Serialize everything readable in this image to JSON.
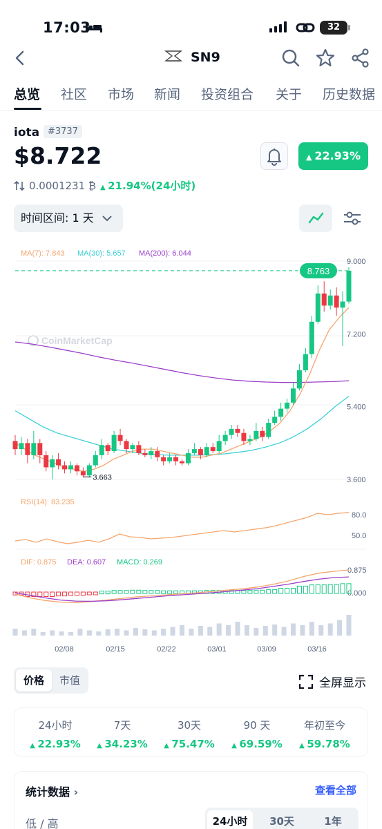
{
  "status_bar": {
    "time": "17:03",
    "battery": "32"
  },
  "header": {
    "coin_name": "SN9"
  },
  "tabs": [
    {
      "label": "总览"
    },
    {
      "label": "社区"
    },
    {
      "label": "市场"
    },
    {
      "label": "新闻"
    },
    {
      "label": "投资组合"
    },
    {
      "label": "关于"
    },
    {
      "label": "历史数据"
    }
  ],
  "coin": {
    "symbol": "iota",
    "rank": "#3737",
    "price": "$8.722",
    "change_24h": "22.93%",
    "btc_price": "0.0001231 ₿",
    "btc_change": "21.94%(24小时)"
  },
  "controls": {
    "range_label": "时间区间: 1 天"
  },
  "chart_data": {
    "type": "candlestick",
    "watermark": "CoinMarketCap",
    "current_price_label": "8.763",
    "low_label": "3.663",
    "y_ticks": [
      "9.000",
      "7.200",
      "5.400",
      "3.600"
    ],
    "x_ticks": [
      "02/08",
      "02/15",
      "02/22",
      "03/01",
      "03/09",
      "03/16"
    ],
    "ma_legend": {
      "ma7": "MA(7): 7.843",
      "ma30": "MA(30): 5.657",
      "ma200": "MA(200): 6.044"
    },
    "rsi_legend": "RSI(14): 83.235",
    "rsi_ticks": [
      "80.0",
      "50.0"
    ],
    "macd_legend": {
      "dif": "DIF: 0.875",
      "dea": "DEA: 0.607",
      "macd": "MACD: 0.269"
    },
    "macd_ticks": [
      "0.875",
      "0.000"
    ],
    "ylim": [
      3.6,
      9.0
    ],
    "candles": [
      [
        4.55,
        4.35,
        4.7,
        4.2
      ],
      [
        4.35,
        4.5,
        4.65,
        4.2
      ],
      [
        4.5,
        4.2,
        4.6,
        4.0
      ],
      [
        4.2,
        4.5,
        4.8,
        4.1
      ],
      [
        4.5,
        4.2,
        4.6,
        4.0
      ],
      [
        4.2,
        3.9,
        4.3,
        3.8
      ],
      [
        3.9,
        4.1,
        4.2,
        3.6
      ],
      [
        4.1,
        3.95,
        4.25,
        3.85
      ],
      [
        3.95,
        3.85,
        4.05,
        3.75
      ],
      [
        3.85,
        3.95,
        4.05,
        3.75
      ],
      [
        3.95,
        3.8,
        4.0,
        3.7
      ],
      [
        3.8,
        3.7,
        3.9,
        3.65
      ],
      [
        3.7,
        3.95,
        4.0,
        3.65
      ],
      [
        3.95,
        4.2,
        4.3,
        3.9
      ],
      [
        4.2,
        4.45,
        4.6,
        4.1
      ],
      [
        4.45,
        4.3,
        4.5,
        4.2
      ],
      [
        4.3,
        4.7,
        4.8,
        4.25
      ],
      [
        4.7,
        4.55,
        4.85,
        4.45
      ],
      [
        4.55,
        4.35,
        4.6,
        4.25
      ],
      [
        4.35,
        4.45,
        4.5,
        4.25
      ],
      [
        4.45,
        4.25,
        4.55,
        4.2
      ],
      [
        4.25,
        4.2,
        4.35,
        4.15
      ],
      [
        4.2,
        4.3,
        4.4,
        4.1
      ],
      [
        4.3,
        4.15,
        4.4,
        4.05
      ],
      [
        4.15,
        4.05,
        4.2,
        3.95
      ],
      [
        4.05,
        4.15,
        4.25,
        4.0
      ],
      [
        4.15,
        4.05,
        4.2,
        3.95
      ],
      [
        4.05,
        4.0,
        4.1,
        3.95
      ],
      [
        4.0,
        4.25,
        4.35,
        3.95
      ],
      [
        4.25,
        4.35,
        4.5,
        4.2
      ],
      [
        4.35,
        4.2,
        4.4,
        4.1
      ],
      [
        4.2,
        4.4,
        4.5,
        4.15
      ],
      [
        4.4,
        4.3,
        4.5,
        4.25
      ],
      [
        4.3,
        4.55,
        4.7,
        4.25
      ],
      [
        4.55,
        4.7,
        4.8,
        4.45
      ],
      [
        4.7,
        4.85,
        4.95,
        4.6
      ],
      [
        4.85,
        4.75,
        4.95,
        4.65
      ],
      [
        4.75,
        4.55,
        4.85,
        4.45
      ],
      [
        4.55,
        4.6,
        4.7,
        4.45
      ],
      [
        4.6,
        4.8,
        5.0,
        4.55
      ],
      [
        4.8,
        4.65,
        4.9,
        4.55
      ],
      [
        4.65,
        5.0,
        5.1,
        4.6
      ],
      [
        5.0,
        5.15,
        5.3,
        4.95
      ],
      [
        5.15,
        5.35,
        5.5,
        5.05
      ],
      [
        5.35,
        5.5,
        5.6,
        5.25
      ],
      [
        5.5,
        5.85,
        6.0,
        5.45
      ],
      [
        5.85,
        6.3,
        6.45,
        5.8
      ],
      [
        6.3,
        6.7,
        6.85,
        6.25
      ],
      [
        6.7,
        7.5,
        7.65,
        6.6
      ],
      [
        7.5,
        8.2,
        8.4,
        7.45
      ],
      [
        8.2,
        7.9,
        8.5,
        7.75
      ],
      [
        7.9,
        8.15,
        8.3,
        7.8
      ],
      [
        8.15,
        7.85,
        8.35,
        7.65
      ],
      [
        7.85,
        8.0,
        8.25,
        6.9
      ],
      [
        8.0,
        8.763,
        8.85,
        7.95
      ]
    ],
    "ma7": [
      4.5,
      4.35,
      4.2,
      4.1,
      4.0,
      3.9,
      3.85,
      3.8,
      3.85,
      3.95,
      4.1,
      4.2,
      4.3,
      4.35,
      4.35,
      4.3,
      4.25,
      4.2,
      4.15,
      4.15,
      4.2,
      4.25,
      4.35,
      4.45,
      4.55,
      4.65,
      4.8,
      5.0,
      5.3,
      5.7,
      6.2,
      6.8,
      7.3,
      7.6,
      7.85
    ],
    "ma30": [
      5.3,
      5.1,
      4.9,
      4.75,
      4.65,
      4.55,
      4.45,
      4.35,
      4.3,
      4.25,
      4.22,
      4.2,
      4.2,
      4.2,
      4.21,
      4.23,
      4.27,
      4.32,
      4.4,
      4.5,
      4.65,
      4.85,
      5.1,
      5.4,
      5.66
    ],
    "ma200": [
      7.0,
      6.95,
      6.88,
      6.8,
      6.72,
      6.63,
      6.55,
      6.48,
      6.4,
      6.32,
      6.24,
      6.17,
      6.11,
      6.06,
      6.03,
      6.01,
      6.0,
      6.0,
      6.01,
      6.02,
      6.04
    ],
    "rsi": [
      42,
      44,
      40,
      45,
      41,
      38,
      40,
      43,
      40,
      45,
      52,
      48,
      47,
      45,
      46,
      47,
      49,
      51,
      53,
      55,
      57,
      55,
      57,
      59,
      61,
      64,
      68,
      72,
      76,
      82,
      80,
      82,
      83.2
    ],
    "dif": [
      -0.05,
      -0.2,
      -0.3,
      -0.36,
      -0.38,
      -0.34,
      -0.28,
      -0.22,
      -0.16,
      -0.12,
      -0.08,
      -0.04,
      0.0,
      0.05,
      0.1,
      0.15,
      0.22,
      0.32,
      0.45,
      0.62,
      0.75,
      0.82,
      0.875
    ],
    "dea": [
      0.0,
      -0.1,
      -0.2,
      -0.28,
      -0.32,
      -0.33,
      -0.31,
      -0.27,
      -0.22,
      -0.17,
      -0.12,
      -0.08,
      -0.04,
      0.0,
      0.05,
      0.1,
      0.16,
      0.24,
      0.33,
      0.43,
      0.52,
      0.58,
      0.607
    ],
    "volumes": [
      0.2,
      0.15,
      0.2,
      0.1,
      0.15,
      0.12,
      0.1,
      0.2,
      0.15,
      0.12,
      0.18,
      0.2,
      0.15,
      0.22,
      0.18,
      0.15,
      0.2,
      0.25,
      0.3,
      0.2,
      0.28,
      0.25,
      0.35,
      0.3,
      0.4,
      0.3,
      0.22,
      0.28,
      0.32,
      0.25,
      0.35,
      0.3,
      0.4,
      0.3,
      0.35,
      0.45,
      0.6
    ]
  },
  "toggle": {
    "price": "价格",
    "market_cap": "市值",
    "fullscreen": "全屏显示"
  },
  "performance": [
    {
      "label": "24小时",
      "value": "22.93%"
    },
    {
      "label": "7天",
      "value": "34.23%"
    },
    {
      "label": "30天",
      "value": "75.47%"
    },
    {
      "label": "90 天",
      "value": "69.59%"
    },
    {
      "label": "年初至今",
      "value": "59.78%"
    }
  ],
  "stats": {
    "title": "统计数据",
    "view_all": "查看全部",
    "low_high": "低 / 高",
    "periods": [
      "24小时",
      "30天",
      "1年"
    ]
  },
  "colors": {
    "up": "#16c784",
    "down": "#ea3943",
    "ma7": "#f5a56c",
    "ma30": "#3cd0d6",
    "ma200": "#9b3fc9"
  }
}
